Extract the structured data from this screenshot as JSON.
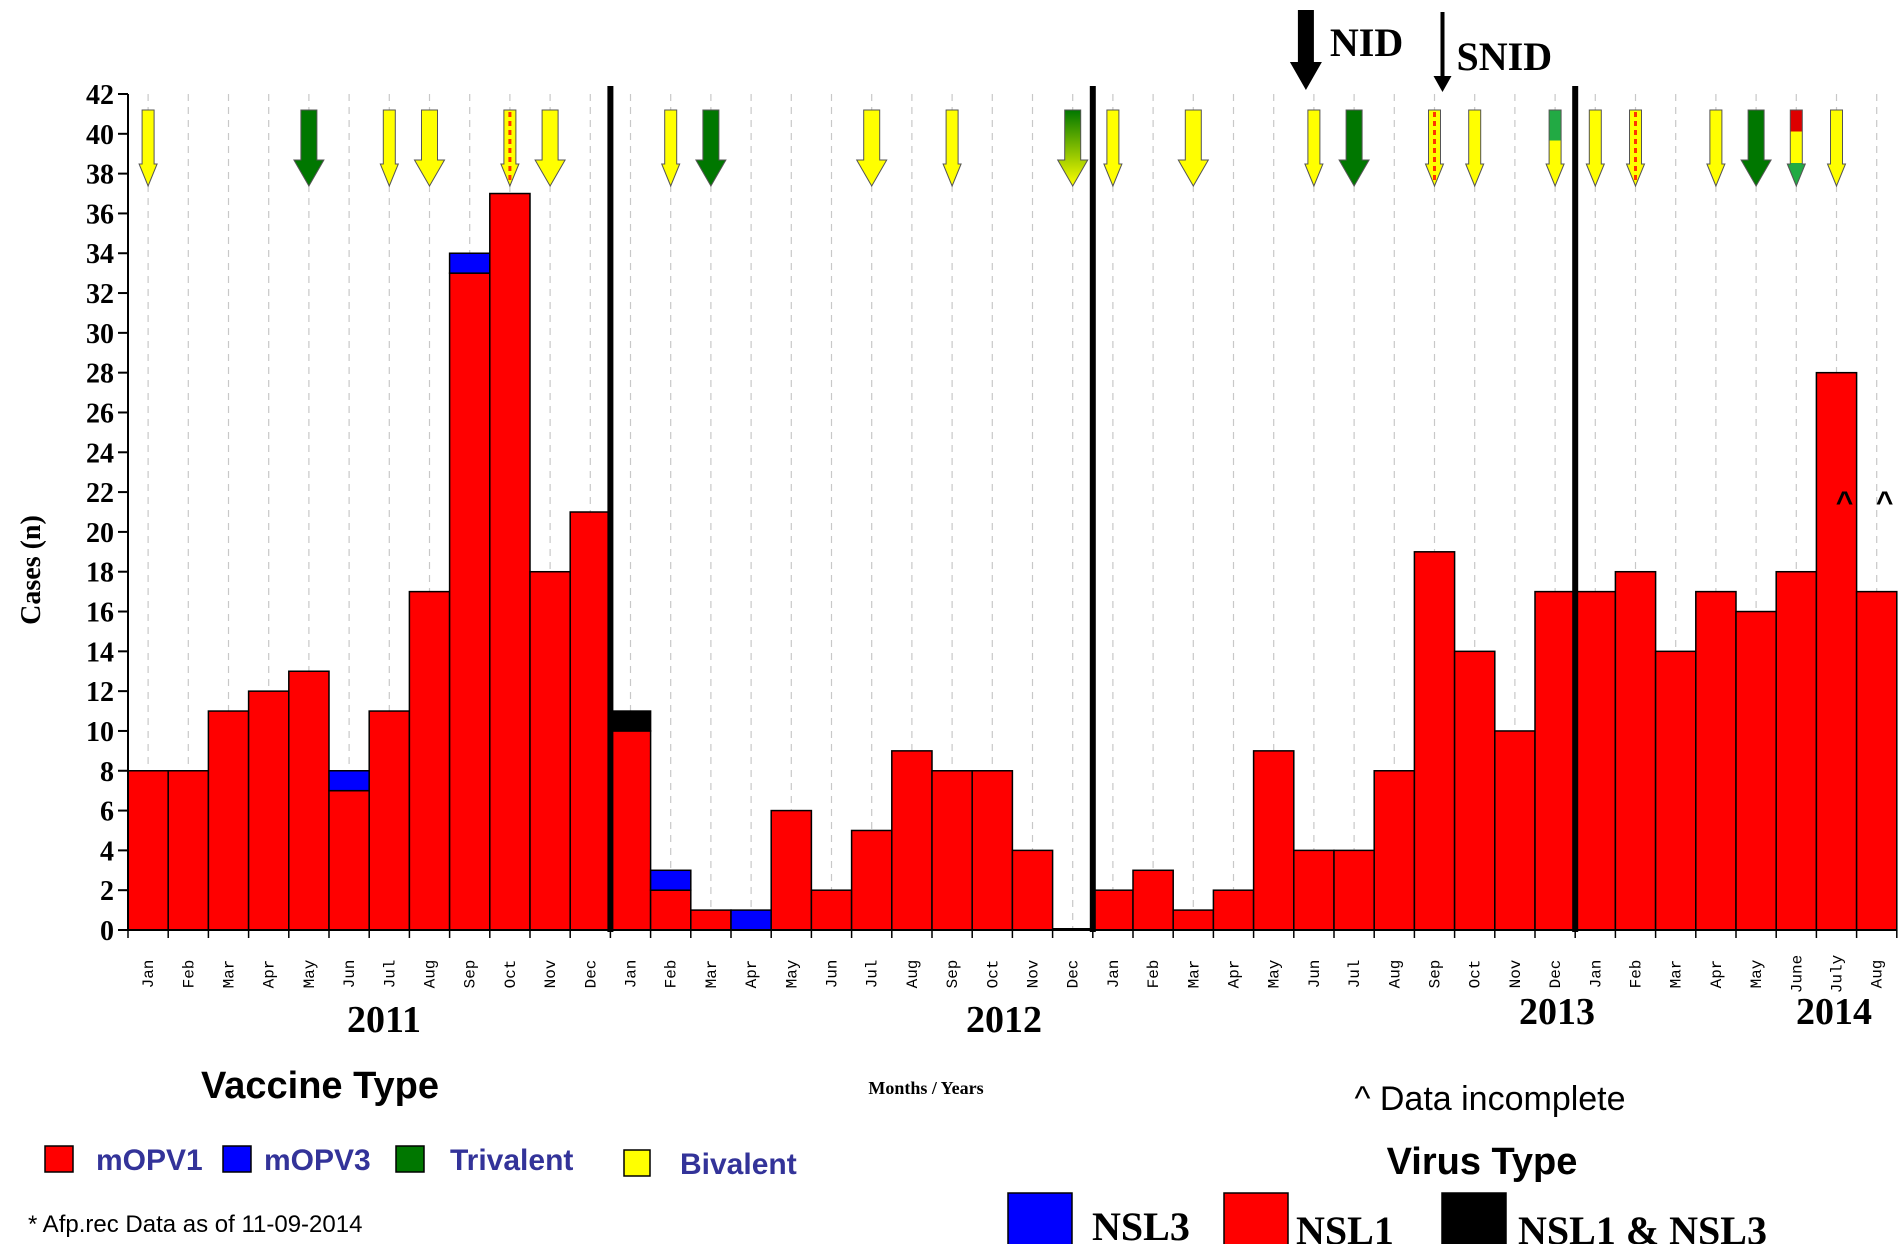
{
  "chart_data": {
    "type": "bar",
    "ylabel": "Cases (n)",
    "xlabel": "Months / Years",
    "ylim": [
      0,
      42
    ],
    "y_ticks": [
      0,
      2,
      4,
      6,
      8,
      10,
      12,
      14,
      16,
      18,
      20,
      22,
      24,
      26,
      28,
      30,
      32,
      34,
      36,
      38,
      40,
      42
    ],
    "years": [
      "2011",
      "2012",
      "2013",
      "2014"
    ],
    "categories": [
      "Jan",
      "Feb",
      "Mar",
      "Apr",
      "May",
      "Jun",
      "Jul",
      "Aug",
      "Sep",
      "Oct",
      "Nov",
      "Dec",
      "Jan",
      "Feb",
      "Mar",
      "Apr",
      "May",
      "Jun",
      "Jul",
      "Aug",
      "Sep",
      "Oct",
      "Nov",
      "Dec",
      "Jan",
      "Feb",
      "Mar",
      "Apr",
      "May",
      "Jun",
      "Jul",
      "Aug",
      "Sep",
      "Oct",
      "Nov",
      "Dec",
      "Jan",
      "Feb",
      "Mar",
      "Apr",
      "May",
      "June",
      "July",
      "Aug"
    ],
    "series": [
      {
        "name": "NSL1",
        "color": "#ff0000",
        "values": [
          8,
          8,
          11,
          12,
          13,
          7,
          11,
          17,
          33,
          37,
          18,
          21,
          10,
          2,
          1,
          0,
          6,
          2,
          5,
          9,
          8,
          8,
          4,
          0,
          2,
          3,
          1,
          2,
          9,
          4,
          4,
          8,
          19,
          14,
          10,
          17,
          17,
          18,
          14,
          17,
          16,
          18,
          28,
          17
        ]
      },
      {
        "name": "NSL3",
        "color": "#0000ff",
        "values": [
          0,
          0,
          0,
          0,
          0,
          1,
          0,
          0,
          1,
          0,
          0,
          0,
          0,
          1,
          0,
          1,
          0,
          0,
          0,
          0,
          0,
          0,
          0,
          0,
          0,
          0,
          0,
          0,
          0,
          0,
          0,
          0,
          0,
          0,
          0,
          0,
          0,
          0,
          0,
          0,
          0,
          0,
          0,
          0
        ]
      },
      {
        "name": "NSL1 & NSL3",
        "color": "#000000",
        "values": [
          0,
          0,
          0,
          0,
          0,
          0,
          0,
          0,
          0,
          0,
          0,
          0,
          1,
          0,
          0,
          0,
          0,
          0,
          0,
          0,
          0,
          0,
          0,
          0,
          0,
          0,
          0,
          0,
          0,
          0,
          0,
          0,
          0,
          0,
          0,
          0,
          0,
          0,
          0,
          0,
          0,
          0,
          0,
          0
        ]
      }
    ],
    "campaign_arrows": [
      {
        "month_index": 0,
        "vaccine": "Bivalent",
        "size": "small"
      },
      {
        "month_index": 4,
        "vaccine": "Trivalent",
        "size": "large"
      },
      {
        "month_index": 6,
        "vaccine": "Bivalent",
        "size": "small"
      },
      {
        "month_index": 7,
        "vaccine": "Bivalent",
        "size": "large"
      },
      {
        "month_index": 9,
        "vaccine": "mixed-red-yellow",
        "size": "small"
      },
      {
        "month_index": 10,
        "vaccine": "Bivalent",
        "size": "large"
      },
      {
        "month_index": 13,
        "vaccine": "Bivalent",
        "size": "small"
      },
      {
        "month_index": 14,
        "vaccine": "Trivalent",
        "size": "large"
      },
      {
        "month_index": 18,
        "vaccine": "Bivalent",
        "size": "large"
      },
      {
        "month_index": 20,
        "vaccine": "Bivalent",
        "size": "small"
      },
      {
        "month_index": 23,
        "vaccine": "gradient-green-yellow",
        "size": "large"
      },
      {
        "month_index": 24,
        "vaccine": "Bivalent",
        "size": "small"
      },
      {
        "month_index": 26,
        "vaccine": "Bivalent",
        "size": "large"
      },
      {
        "month_index": 29,
        "vaccine": "Bivalent",
        "size": "small"
      },
      {
        "month_index": 30,
        "vaccine": "Trivalent",
        "size": "large"
      },
      {
        "month_index": 32,
        "vaccine": "mixed-red-yellow",
        "size": "small"
      },
      {
        "month_index": 33,
        "vaccine": "Bivalent",
        "size": "small"
      },
      {
        "month_index": 35,
        "vaccine": "green-yellow",
        "size": "small"
      },
      {
        "month_index": 36,
        "vaccine": "Bivalent",
        "size": "small"
      },
      {
        "month_index": 37,
        "vaccine": "mixed-red-yellow",
        "size": "small"
      },
      {
        "month_index": 39,
        "vaccine": "Bivalent",
        "size": "small"
      },
      {
        "month_index": 40,
        "vaccine": "Trivalent",
        "size": "large"
      },
      {
        "month_index": 41,
        "vaccine": "red-yellow-green",
        "size": "small"
      },
      {
        "month_index": 42,
        "vaccine": "Bivalent",
        "size": "small"
      }
    ],
    "incomplete_marker": "^",
    "incomplete_months": [
      42,
      43
    ],
    "nid_label": "NID",
    "snid_label": "SNID",
    "nid_month": 29,
    "snid_month": 32
  },
  "legend": {
    "vaccine_title": "Vaccine Type",
    "vaccine_items": [
      {
        "label": "mOPV1",
        "color": "#ff0000"
      },
      {
        "label": "mOPV3",
        "color": "#0000ff"
      },
      {
        "label": "Trivalent",
        "color": "#007700"
      },
      {
        "label": "Bivalent",
        "color": "#ffff00"
      }
    ],
    "virus_title": "Virus Type",
    "virus_items": [
      {
        "label": "NSL3",
        "color": "#0000ff"
      },
      {
        "label": "NSL1",
        "color": "#ff0000"
      },
      {
        "label": "NSL1 & NSL3",
        "color": "#000000"
      }
    ],
    "incomplete_note": "^ Data incomplete",
    "source_note": "* Afp.rec Data as of 11-09-2014"
  }
}
